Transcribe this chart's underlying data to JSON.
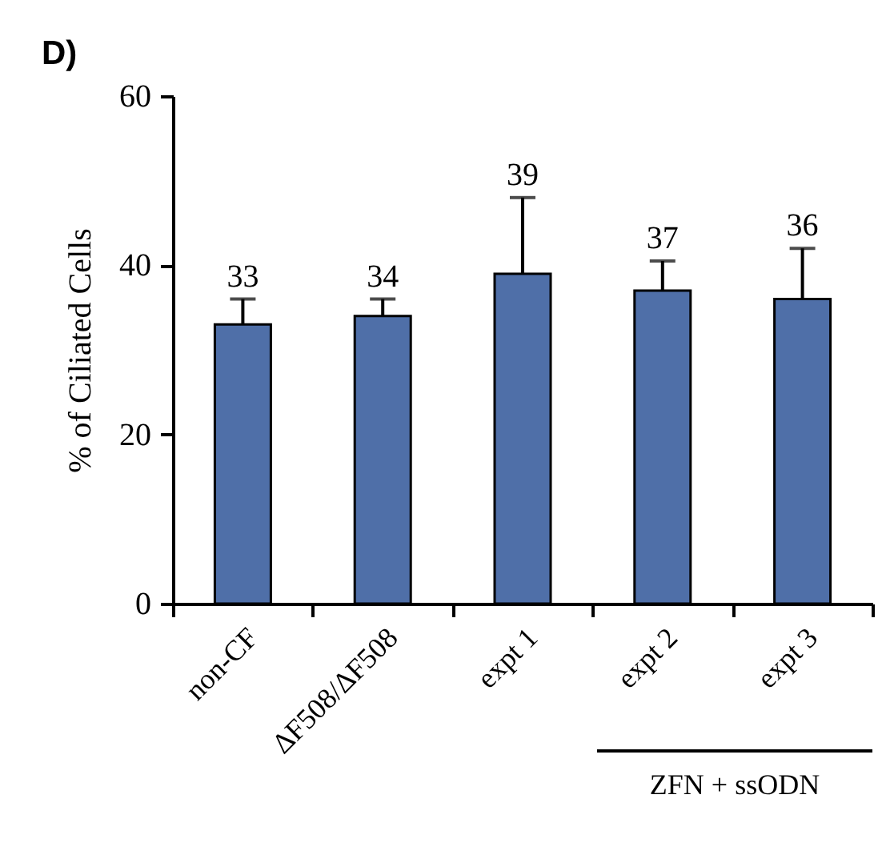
{
  "chart_data": {
    "type": "bar",
    "ylabel": "% of Ciliated Cells",
    "categories": [
      "non-CF",
      "ΔF508/ΔF508",
      "expt 1",
      "expt 2",
      "expt 3"
    ],
    "values": [
      33,
      34,
      39,
      37,
      36
    ],
    "errors": [
      [
        33,
        36
      ],
      [
        34,
        36
      ],
      [
        39,
        48
      ],
      [
        37,
        40.5
      ],
      [
        36,
        42
      ]
    ],
    "color": "#4f6fa8",
    "ylim": [
      0,
      60
    ],
    "yticks": [
      0,
      20,
      40,
      60
    ],
    "data_labels": true,
    "grid": false,
    "annotations": [
      "D)",
      "ZFN + ssODN"
    ]
  }
}
